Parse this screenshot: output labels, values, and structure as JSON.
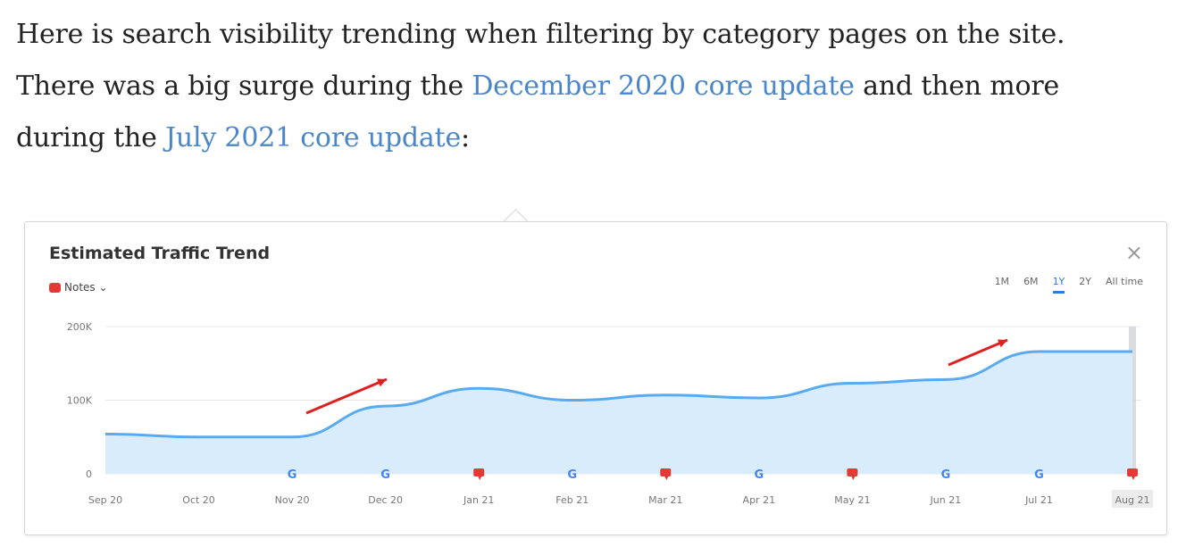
{
  "article": {
    "line1": "Here is search visibility trending when filtering by category pages on the site.",
    "line2_prefix": "There was a big surge during the ",
    "link1": "December 2020 core update",
    "line2_suffix": " and then more",
    "line3_prefix": "during the ",
    "link2": "July 2021 core update",
    "line3_suffix": ":"
  },
  "widget": {
    "title": "Estimated Traffic Trend",
    "close": "×",
    "notes_label": "Notes ⌄",
    "ranges": [
      "1M",
      "6M",
      "1Y",
      "2Y",
      "All time"
    ],
    "active_range": "1Y"
  },
  "chart_data": {
    "type": "area",
    "title": "Estimated Traffic Trend",
    "x": [
      "Sep 20",
      "Oct 20",
      "Nov 20",
      "Dec 20",
      "Jan 21",
      "Feb 21",
      "Mar 21",
      "Apr 21",
      "May 21",
      "Jun 21",
      "Jul 21",
      "Aug 21"
    ],
    "series": [
      {
        "values": [
          54000,
          50000,
          50000,
          92000,
          116000,
          100000,
          107000,
          103000,
          123000,
          128000,
          166000,
          166000
        ],
        "color": "#5aaaf0",
        "fill": "#d9ecfb"
      }
    ],
    "yticks": [
      "0",
      "100K",
      "200K"
    ],
    "ylim": [
      0,
      200000
    ],
    "highlighted_x": "Aug 21",
    "markers": [
      {
        "x": "Nov 20",
        "type": "google-update"
      },
      {
        "x": "Dec 20",
        "type": "google-update"
      },
      {
        "x": "Jan 21",
        "type": "note"
      },
      {
        "x": "Feb 21",
        "type": "google-update"
      },
      {
        "x": "Mar 21",
        "type": "note"
      },
      {
        "x": "Apr 21",
        "type": "google-update"
      },
      {
        "x": "May 21",
        "type": "note"
      },
      {
        "x": "Jun 21",
        "type": "google-update"
      },
      {
        "x": "Jul 21",
        "type": "google-update"
      },
      {
        "x": "Aug 21",
        "type": "note"
      }
    ],
    "annotations": [
      {
        "type": "arrow",
        "color": "#e02020",
        "near": "Dec 20"
      },
      {
        "type": "arrow",
        "color": "#e02020",
        "near": "Jul 21"
      }
    ],
    "grid": true
  }
}
